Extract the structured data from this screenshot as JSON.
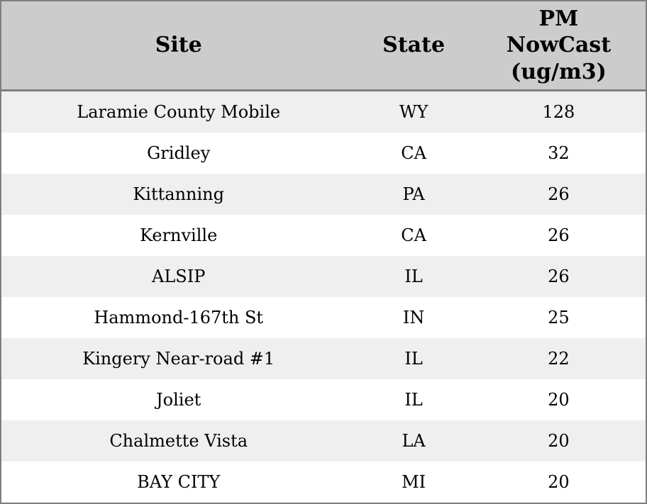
{
  "colors": {
    "border": "#7f7f7f",
    "header_bg": "#cccccc",
    "row_alt_bg": "#efefef",
    "row_bg": "#ffffff",
    "text": "#000000"
  },
  "chart_data": {
    "type": "table",
    "columns": [
      "Site",
      "State",
      "PM NowCast (ug/m3)"
    ],
    "rows": [
      [
        "Laramie County Mobile",
        "WY",
        128
      ],
      [
        "Gridley",
        "CA",
        32
      ],
      [
        "Kittanning",
        "PA",
        26
      ],
      [
        "Kernville",
        "CA",
        26
      ],
      [
        "ALSIP",
        "IL",
        26
      ],
      [
        "Hammond-167th St",
        "IN",
        25
      ],
      [
        "Kingery Near-road #1",
        "IL",
        22
      ],
      [
        "Joliet",
        "IL",
        20
      ],
      [
        "Chalmette Vista",
        "LA",
        20
      ],
      [
        "BAY CITY",
        "MI",
        20
      ]
    ]
  }
}
